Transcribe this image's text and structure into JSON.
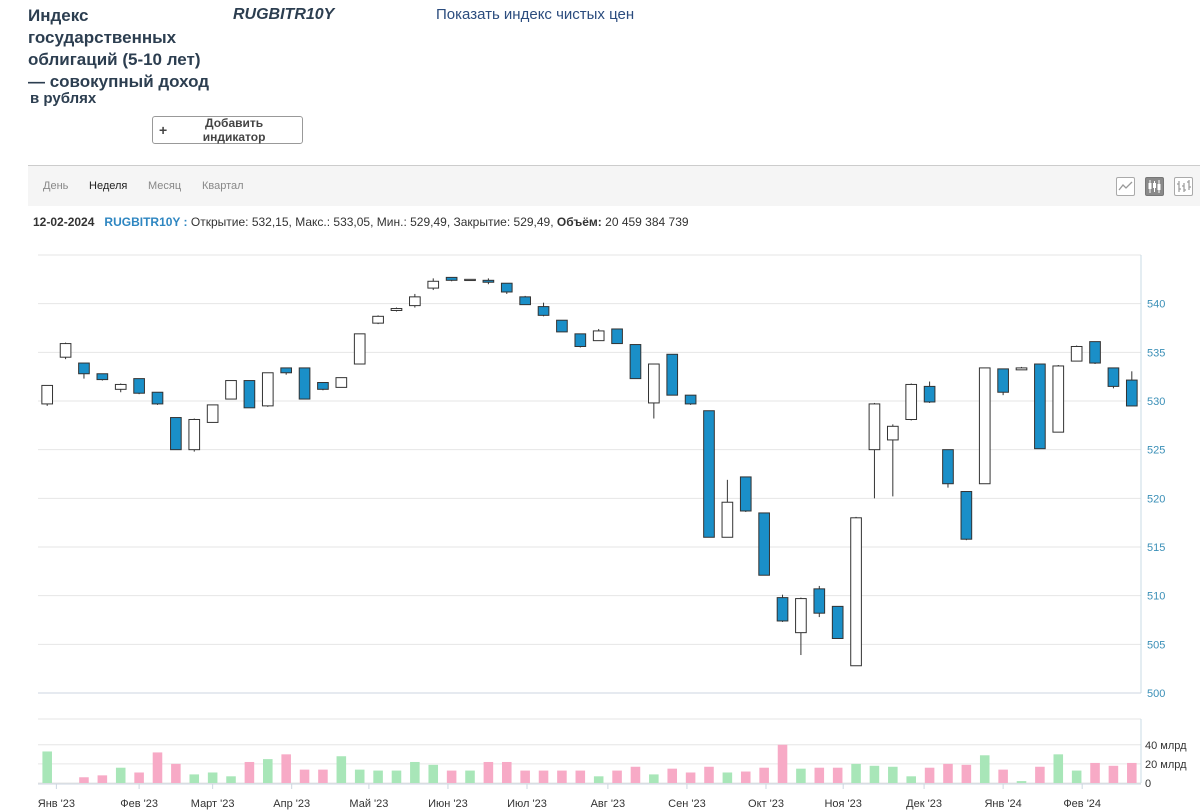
{
  "header": {
    "title_lines": [
      "Индекс",
      "государственных",
      "облигаций (5-10 лет)",
      "— совокупный доход"
    ],
    "subtitle": "в рублях",
    "ticker": "RUGBITR10Y",
    "clean_price_link": "Показать индекс чистых цен",
    "add_indicator": "Добавить индикатор",
    "add_icon": "plus-icon"
  },
  "toolbar": {
    "tabs": [
      "День",
      "Неделя",
      "Месяц",
      "Квартал"
    ],
    "active_tab": "Неделя",
    "views": [
      "line-chart-icon",
      "candlestick-chart-icon",
      "ohlc-chart-icon"
    ],
    "active_view": "candlestick-chart-icon"
  },
  "info": {
    "date": "12-02-2024",
    "ticker": "RUGBITR10Y :",
    "open_label": "Открытие:",
    "open": "532,15",
    "high_label": "Макс.:",
    "high": "533,05",
    "low_label": "Мин.:",
    "low": "529,49",
    "close_label": "Закрытие:",
    "close": "529,49",
    "volume_label": "Объём:",
    "volume": "20 459 384 739"
  },
  "colors": {
    "down": "#1a8fc8",
    "up": "#ffffff",
    "outline": "#333333",
    "vol_up": "#a8e6b8",
    "vol_down": "#f7aac6",
    "axis_text": "#3a8fb7"
  },
  "chart_data": {
    "type": "candlestick",
    "ylim": [
      500,
      545
    ],
    "yticks": [
      500,
      505,
      510,
      515,
      520,
      525,
      530,
      535,
      540
    ],
    "volume_ylim": [
      0,
      45
    ],
    "volume_ticks": [
      "40 млрд",
      "20 млрд",
      "0"
    ],
    "volume_tick_values": [
      40,
      20,
      0
    ],
    "month_labels": [
      "Янв '23",
      "Фев '23",
      "Март '23",
      "Апр '23",
      "Май '23",
      "Июн '23",
      "Июл '23",
      "Авг '23",
      "Сен '23",
      "Окт '23",
      "Ноя '23",
      "Дек '23",
      "Янв '24",
      "Фев '24"
    ],
    "month_label_week": [
      1,
      5.5,
      9.5,
      13.8,
      18,
      22.3,
      26.6,
      31,
      35.3,
      39.6,
      43.8,
      48.2,
      52.5,
      56.8
    ],
    "candles": [
      {
        "o": 529.7,
        "h": 531.6,
        "l": 529.5,
        "c": 531.6
      },
      {
        "o": 534.5,
        "h": 536.0,
        "l": 534.3,
        "c": 535.9
      },
      {
        "o": 533.9,
        "h": 533.9,
        "l": 532.3,
        "c": 532.8
      },
      {
        "o": 532.8,
        "h": 532.8,
        "l": 532.1,
        "c": 532.2
      },
      {
        "o": 531.2,
        "h": 531.8,
        "l": 530.9,
        "c": 531.7
      },
      {
        "o": 532.3,
        "h": 532.3,
        "l": 530.7,
        "c": 530.8
      },
      {
        "o": 530.9,
        "h": 530.9,
        "l": 529.6,
        "c": 529.7
      },
      {
        "o": 528.3,
        "h": 528.3,
        "l": 525.0,
        "c": 525.0
      },
      {
        "o": 525.0,
        "h": 528.2,
        "l": 524.8,
        "c": 528.1
      },
      {
        "o": 527.8,
        "h": 529.6,
        "l": 527.8,
        "c": 529.6
      },
      {
        "o": 530.2,
        "h": 532.1,
        "l": 530.2,
        "c": 532.1
      },
      {
        "o": 532.1,
        "h": 532.1,
        "l": 529.3,
        "c": 529.3
      },
      {
        "o": 529.5,
        "h": 532.9,
        "l": 529.4,
        "c": 532.9
      },
      {
        "o": 533.4,
        "h": 533.4,
        "l": 532.7,
        "c": 532.9
      },
      {
        "o": 533.4,
        "h": 533.4,
        "l": 530.2,
        "c": 530.2
      },
      {
        "o": 531.9,
        "h": 531.9,
        "l": 531.1,
        "c": 531.2
      },
      {
        "o": 531.4,
        "h": 532.4,
        "l": 531.4,
        "c": 532.4
      },
      {
        "o": 533.8,
        "h": 536.9,
        "l": 533.8,
        "c": 536.9
      },
      {
        "o": 538.0,
        "h": 538.8,
        "l": 537.9,
        "c": 538.7
      },
      {
        "o": 539.3,
        "h": 539.6,
        "l": 539.2,
        "c": 539.5
      },
      {
        "o": 539.8,
        "h": 541.0,
        "l": 539.6,
        "c": 540.7
      },
      {
        "o": 541.6,
        "h": 542.6,
        "l": 541.4,
        "c": 542.3
      },
      {
        "o": 542.7,
        "h": 542.7,
        "l": 542.3,
        "c": 542.4
      },
      {
        "o": 542.5,
        "h": 542.5,
        "l": 542.5,
        "c": 542.5
      },
      {
        "o": 542.4,
        "h": 542.6,
        "l": 542.0,
        "c": 542.2
      },
      {
        "o": 542.1,
        "h": 542.1,
        "l": 541.0,
        "c": 541.2
      },
      {
        "o": 540.7,
        "h": 540.8,
        "l": 539.9,
        "c": 539.9
      },
      {
        "o": 539.7,
        "h": 540.1,
        "l": 538.7,
        "c": 538.8
      },
      {
        "o": 538.3,
        "h": 538.3,
        "l": 537.1,
        "c": 537.1
      },
      {
        "o": 536.9,
        "h": 536.9,
        "l": 535.5,
        "c": 535.6
      },
      {
        "o": 536.2,
        "h": 537.4,
        "l": 536.2,
        "c": 537.2
      },
      {
        "o": 537.4,
        "h": 537.4,
        "l": 535.9,
        "c": 535.9
      },
      {
        "o": 535.8,
        "h": 535.8,
        "l": 532.3,
        "c": 532.3
      },
      {
        "o": 529.8,
        "h": 533.8,
        "l": 528.2,
        "c": 533.8
      },
      {
        "o": 534.8,
        "h": 534.8,
        "l": 530.6,
        "c": 530.6
      },
      {
        "o": 530.6,
        "h": 530.6,
        "l": 529.6,
        "c": 529.7
      },
      {
        "o": 529.0,
        "h": 529.0,
        "l": 516.0,
        "c": 516.0
      },
      {
        "o": 516.0,
        "h": 521.9,
        "l": 516.0,
        "c": 519.6
      },
      {
        "o": 522.2,
        "h": 522.2,
        "l": 518.6,
        "c": 518.7
      },
      {
        "o": 518.5,
        "h": 518.5,
        "l": 512.1,
        "c": 512.1
      },
      {
        "o": 509.8,
        "h": 510.1,
        "l": 507.3,
        "c": 507.4
      },
      {
        "o": 506.2,
        "h": 509.8,
        "l": 503.9,
        "c": 509.7
      },
      {
        "o": 510.7,
        "h": 511.0,
        "l": 507.8,
        "c": 508.2
      },
      {
        "o": 508.9,
        "h": 508.9,
        "l": 505.6,
        "c": 505.6
      },
      {
        "o": 502.8,
        "h": 518.1,
        "l": 502.8,
        "c": 518.0
      },
      {
        "o": 525.0,
        "h": 529.8,
        "l": 520.0,
        "c": 529.7
      },
      {
        "o": 526.0,
        "h": 527.6,
        "l": 520.2,
        "c": 527.4
      },
      {
        "o": 528.1,
        "h": 531.8,
        "l": 528.0,
        "c": 531.7
      },
      {
        "o": 531.5,
        "h": 532.0,
        "l": 529.8,
        "c": 529.9
      },
      {
        "o": 525.0,
        "h": 525.0,
        "l": 521.1,
        "c": 521.5
      },
      {
        "o": 520.7,
        "h": 520.7,
        "l": 515.7,
        "c": 515.8
      },
      {
        "o": 521.5,
        "h": 533.4,
        "l": 521.5,
        "c": 533.4
      },
      {
        "o": 533.3,
        "h": 533.3,
        "l": 530.6,
        "c": 530.9
      },
      {
        "o": 533.2,
        "h": 533.5,
        "l": 533.2,
        "c": 533.4
      },
      {
        "o": 533.8,
        "h": 533.8,
        "l": 525.1,
        "c": 525.1
      },
      {
        "o": 526.8,
        "h": 533.7,
        "l": 526.8,
        "c": 533.6
      },
      {
        "o": 534.1,
        "h": 535.7,
        "l": 534.1,
        "c": 535.6
      },
      {
        "o": 536.1,
        "h": 536.1,
        "l": 533.8,
        "c": 533.9
      },
      {
        "o": 533.4,
        "h": 533.4,
        "l": 531.3,
        "c": 531.5
      },
      {
        "o": 532.15,
        "h": 533.05,
        "l": 529.49,
        "c": 529.49
      }
    ],
    "volumes": [
      33,
      0,
      6,
      8,
      16,
      11,
      32,
      20,
      9,
      11,
      7,
      22,
      25,
      30,
      14,
      14,
      28,
      14,
      13,
      13,
      22,
      19,
      13,
      13,
      22,
      22,
      13,
      13,
      13,
      13,
      7,
      13,
      17,
      9,
      15,
      11,
      17,
      11,
      12,
      16,
      40,
      15,
      16,
      16,
      20,
      18,
      17,
      7,
      16,
      20,
      19,
      29,
      14,
      2,
      17,
      30,
      13,
      21,
      18,
      21
    ]
  }
}
